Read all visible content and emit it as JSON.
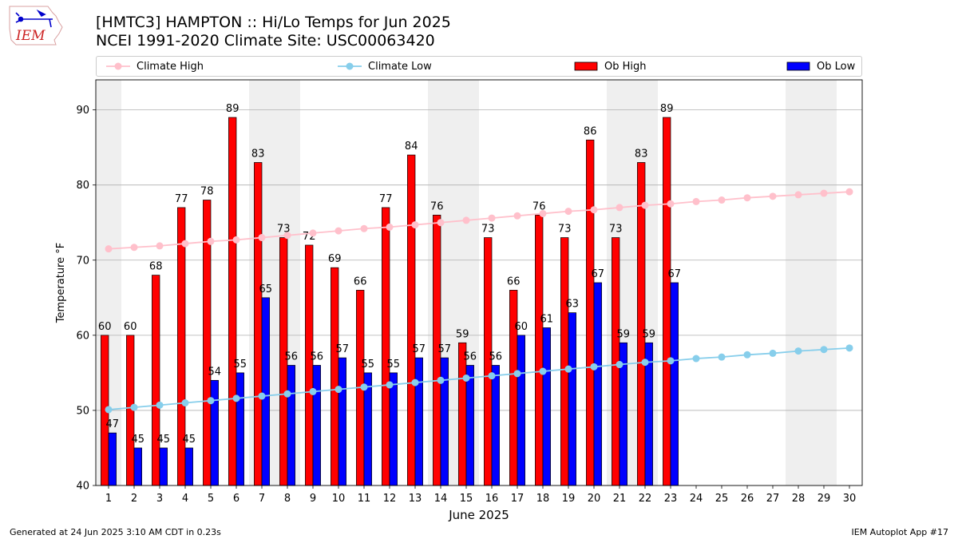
{
  "header": {
    "title_line1": "[HMTC3] HAMPTON :: Hi/Lo Temps for Jun 2025",
    "title_line2": "NCEI 1991-2020 Climate Site: USC00063420",
    "logo_text": "IEM"
  },
  "footer": {
    "generated": "Generated at 24 Jun 2025 3:10 AM CDT in 0.23s",
    "app": "IEM Autoplot App #17"
  },
  "legend": {
    "climate_high": "Climate High",
    "climate_low": "Climate Low",
    "ob_high": "Ob High",
    "ob_low": "Ob Low"
  },
  "colors": {
    "climate_high": "#ffc0cb",
    "climate_low": "#87ceeb",
    "ob_high": "#ff0000",
    "ob_low": "#0000ff",
    "weekend_band": "#efefef",
    "grid": "#b0b0b0"
  },
  "chart_data": {
    "type": "bar",
    "xlabel": "June 2025",
    "ylabel": "Temperature °F",
    "xlim": [
      1,
      30
    ],
    "ylim": [
      40,
      94
    ],
    "y_ticks": [
      40,
      50,
      60,
      70,
      80,
      90
    ],
    "grid": "horizontal",
    "legend_position": "top",
    "days": [
      1,
      2,
      3,
      4,
      5,
      6,
      7,
      8,
      9,
      10,
      11,
      12,
      13,
      14,
      15,
      16,
      17,
      18,
      19,
      20,
      21,
      22,
      23,
      24,
      25,
      26,
      27,
      28,
      29,
      30
    ],
    "weekend_days": [
      1,
      7,
      8,
      14,
      15,
      21,
      22,
      28,
      29
    ],
    "ob_high": [
      60,
      60,
      68,
      77,
      78,
      89,
      83,
      73,
      72,
      69,
      66,
      77,
      84,
      76,
      59,
      73,
      66,
      76,
      73,
      86,
      73,
      83,
      89
    ],
    "ob_low": [
      47,
      45,
      45,
      45,
      54,
      55,
      65,
      56,
      56,
      57,
      55,
      55,
      57,
      57,
      56,
      56,
      60,
      61,
      63,
      67,
      59,
      59,
      67
    ],
    "climate_high": [
      71.5,
      71.7,
      71.9,
      72.2,
      72.5,
      72.7,
      73.0,
      73.3,
      73.6,
      73.9,
      74.2,
      74.4,
      74.7,
      75.0,
      75.3,
      75.6,
      75.9,
      76.2,
      76.5,
      76.7,
      77.0,
      77.3,
      77.5,
      77.8,
      78.0,
      78.3,
      78.5,
      78.7,
      78.9,
      79.1
    ],
    "climate_low": [
      50.1,
      50.4,
      50.7,
      51.0,
      51.3,
      51.6,
      51.9,
      52.2,
      52.5,
      52.8,
      53.1,
      53.4,
      53.7,
      54.0,
      54.3,
      54.6,
      54.9,
      55.2,
      55.5,
      55.8,
      56.1,
      56.4,
      56.6,
      56.9,
      57.1,
      57.4,
      57.6,
      57.9,
      58.1,
      58.3
    ]
  }
}
